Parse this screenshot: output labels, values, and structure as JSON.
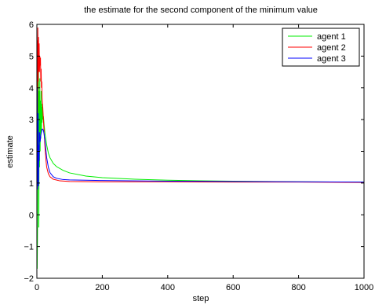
{
  "chart_data": {
    "type": "line",
    "title": "the  estimate for the second component of the minimum  value",
    "xlabel": "step",
    "ylabel": "estimate",
    "xlim": [
      0,
      1000
    ],
    "ylim": [
      -2,
      6
    ],
    "xticks": [
      0,
      200,
      400,
      600,
      800,
      1000
    ],
    "yticks": [
      -2,
      -1,
      0,
      1,
      2,
      3,
      4,
      5,
      6
    ],
    "grid": false,
    "legend_position": "top-right",
    "series": [
      {
        "name": "agent 1",
        "color": "#00ee00",
        "points": [
          [
            0,
            -0.3
          ],
          [
            1,
            -1.7
          ],
          [
            2,
            -0.5
          ],
          [
            3,
            4.6
          ],
          [
            4,
            1.0
          ],
          [
            5,
            5.2
          ],
          [
            6,
            -0.4
          ],
          [
            7,
            3.9
          ],
          [
            8,
            1.5
          ],
          [
            9,
            4.3
          ],
          [
            10,
            2.0
          ],
          [
            11,
            3.6
          ],
          [
            12,
            2.4
          ],
          [
            13,
            3.9
          ],
          [
            14,
            2.6
          ],
          [
            15,
            3.5
          ],
          [
            16,
            2.9
          ],
          [
            17,
            3.4
          ],
          [
            18,
            3.0
          ],
          [
            20,
            3.1
          ],
          [
            22,
            2.85
          ],
          [
            25,
            2.55
          ],
          [
            30,
            2.2
          ],
          [
            35,
            1.95
          ],
          [
            40,
            1.8
          ],
          [
            50,
            1.62
          ],
          [
            60,
            1.52
          ],
          [
            80,
            1.4
          ],
          [
            100,
            1.32
          ],
          [
            150,
            1.22
          ],
          [
            200,
            1.17
          ],
          [
            300,
            1.12
          ],
          [
            400,
            1.09
          ],
          [
            500,
            1.07
          ],
          [
            600,
            1.06
          ],
          [
            700,
            1.05
          ],
          [
            800,
            1.04
          ],
          [
            900,
            1.035
          ],
          [
            1000,
            1.03
          ]
        ]
      },
      {
        "name": "agent 2",
        "color": "#ff0000",
        "points": [
          [
            0,
            0.5
          ],
          [
            1,
            5.5
          ],
          [
            2,
            3.0
          ],
          [
            3,
            5.9
          ],
          [
            4,
            4.2
          ],
          [
            5,
            5.6
          ],
          [
            6,
            4.5
          ],
          [
            7,
            5.4
          ],
          [
            8,
            4.5
          ],
          [
            9,
            5.0
          ],
          [
            10,
            4.7
          ],
          [
            11,
            4.95
          ],
          [
            12,
            4.2
          ],
          [
            13,
            4.6
          ],
          [
            14,
            4.0
          ],
          [
            15,
            4.2
          ],
          [
            16,
            3.7
          ],
          [
            18,
            3.4
          ],
          [
            20,
            3.0
          ],
          [
            22,
            2.6
          ],
          [
            25,
            2.1
          ],
          [
            28,
            1.7
          ],
          [
            30,
            1.5
          ],
          [
            35,
            1.3
          ],
          [
            40,
            1.2
          ],
          [
            50,
            1.12
          ],
          [
            70,
            1.07
          ],
          [
            100,
            1.05
          ],
          [
            200,
            1.04
          ],
          [
            400,
            1.04
          ],
          [
            600,
            1.03
          ],
          [
            800,
            1.03
          ],
          [
            1000,
            1.02
          ]
        ]
      },
      {
        "name": "agent 3",
        "color": "#0000ff",
        "points": [
          [
            0,
            0.3
          ],
          [
            1,
            4.0
          ],
          [
            2,
            0.8
          ],
          [
            3,
            1.3
          ],
          [
            4,
            3.2
          ],
          [
            5,
            0.9
          ],
          [
            6,
            2.2
          ],
          [
            7,
            1.7
          ],
          [
            8,
            2.6
          ],
          [
            10,
            2.3
          ],
          [
            12,
            2.5
          ],
          [
            14,
            2.62
          ],
          [
            16,
            2.7
          ],
          [
            18,
            2.7
          ],
          [
            20,
            2.65
          ],
          [
            22,
            2.55
          ],
          [
            25,
            2.3
          ],
          [
            28,
            2.0
          ],
          [
            30,
            1.8
          ],
          [
            35,
            1.5
          ],
          [
            40,
            1.33
          ],
          [
            50,
            1.2
          ],
          [
            60,
            1.15
          ],
          [
            80,
            1.11
          ],
          [
            100,
            1.1
          ],
          [
            200,
            1.08
          ],
          [
            400,
            1.06
          ],
          [
            600,
            1.05
          ],
          [
            800,
            1.04
          ],
          [
            1000,
            1.03
          ]
        ]
      }
    ]
  }
}
